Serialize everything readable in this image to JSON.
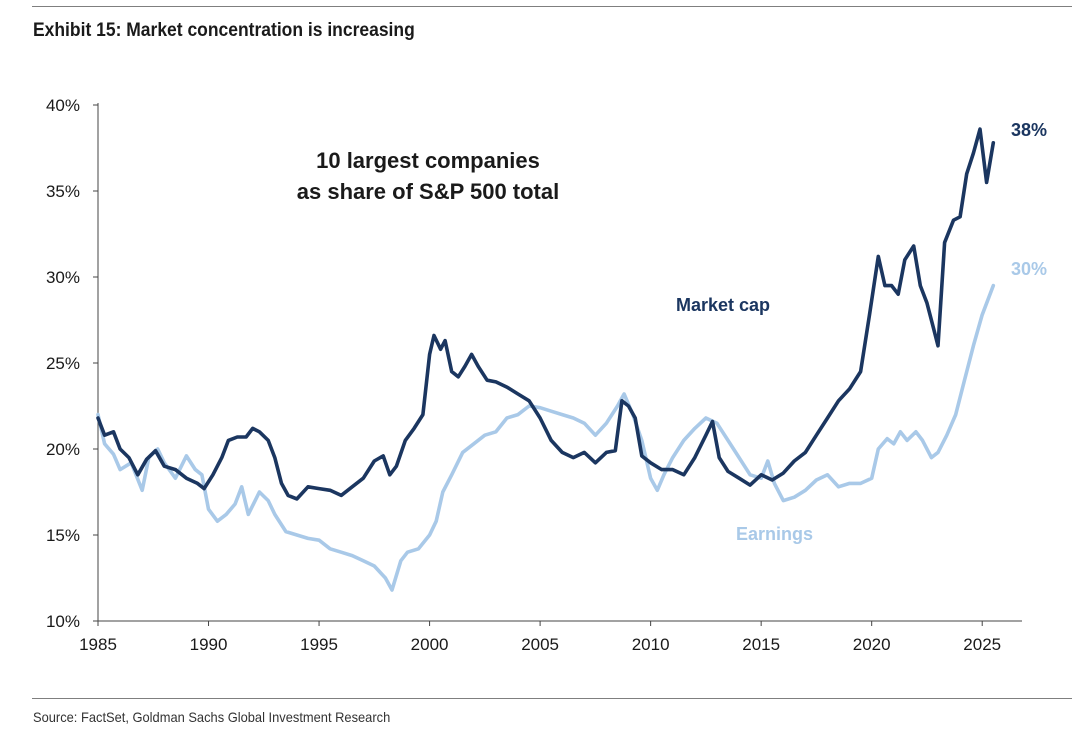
{
  "header": {
    "title": "Exhibit 15: Market concentration is increasing"
  },
  "footer": {
    "source": "Source: FactSet, Goldman Sachs Global Investment Research"
  },
  "chart_data": {
    "type": "line",
    "annotation": [
      "10 largest companies",
      "as share of S&P 500 total"
    ],
    "xlim": [
      1985,
      2026.8
    ],
    "ylim": [
      10,
      40
    ],
    "x_ticks": [
      {
        "value": 1985,
        "label": "1985"
      },
      {
        "value": 1990,
        "label": "1990"
      },
      {
        "value": 1995,
        "label": "1995"
      },
      {
        "value": 2000,
        "label": "2000"
      },
      {
        "value": 2005,
        "label": "2005"
      },
      {
        "value": 2010,
        "label": "2010"
      },
      {
        "value": 2015,
        "label": "2015"
      },
      {
        "value": 2020,
        "label": "2020"
      },
      {
        "value": 2025,
        "label": "2025"
      }
    ],
    "y_ticks": [
      {
        "value": 10,
        "label": "10%"
      },
      {
        "value": 15,
        "label": "15%"
      },
      {
        "value": 20,
        "label": "20%"
      },
      {
        "value": 25,
        "label": "25%"
      },
      {
        "value": 30,
        "label": "30%"
      },
      {
        "value": 35,
        "label": "35%"
      },
      {
        "value": 40,
        "label": "40%"
      }
    ],
    "grid": false,
    "series": [
      {
        "name": "Market cap",
        "color": "#1b3660",
        "end_label": "38%",
        "points": [
          [
            1985.0,
            21.8
          ],
          [
            1985.3,
            20.8
          ],
          [
            1985.7,
            21.0
          ],
          [
            1986.0,
            20.0
          ],
          [
            1986.4,
            19.5
          ],
          [
            1986.8,
            18.5
          ],
          [
            1987.2,
            19.4
          ],
          [
            1987.6,
            19.9
          ],
          [
            1988.0,
            19.0
          ],
          [
            1988.5,
            18.8
          ],
          [
            1989.0,
            18.3
          ],
          [
            1989.5,
            18.0
          ],
          [
            1989.8,
            17.7
          ],
          [
            1990.2,
            18.5
          ],
          [
            1990.6,
            19.5
          ],
          [
            1990.9,
            20.5
          ],
          [
            1991.3,
            20.7
          ],
          [
            1991.7,
            20.7
          ],
          [
            1992.0,
            21.2
          ],
          [
            1992.3,
            21.0
          ],
          [
            1992.7,
            20.5
          ],
          [
            1993.0,
            19.5
          ],
          [
            1993.3,
            18.0
          ],
          [
            1993.6,
            17.3
          ],
          [
            1994.0,
            17.1
          ],
          [
            1994.5,
            17.8
          ],
          [
            1995.0,
            17.7
          ],
          [
            1995.5,
            17.6
          ],
          [
            1996.0,
            17.3
          ],
          [
            1996.5,
            17.8
          ],
          [
            1997.0,
            18.3
          ],
          [
            1997.5,
            19.3
          ],
          [
            1997.9,
            19.6
          ],
          [
            1998.2,
            18.5
          ],
          [
            1998.5,
            19.0
          ],
          [
            1998.9,
            20.5
          ],
          [
            1999.3,
            21.2
          ],
          [
            1999.7,
            22.0
          ],
          [
            2000.0,
            25.5
          ],
          [
            2000.2,
            26.6
          ],
          [
            2000.5,
            25.8
          ],
          [
            2000.7,
            26.3
          ],
          [
            2001.0,
            24.5
          ],
          [
            2001.3,
            24.2
          ],
          [
            2001.6,
            24.8
          ],
          [
            2001.9,
            25.5
          ],
          [
            2002.2,
            24.8
          ],
          [
            2002.6,
            24.0
          ],
          [
            2003.0,
            23.9
          ],
          [
            2003.5,
            23.6
          ],
          [
            2004.0,
            23.2
          ],
          [
            2004.5,
            22.8
          ],
          [
            2005.0,
            21.8
          ],
          [
            2005.5,
            20.5
          ],
          [
            2006.0,
            19.8
          ],
          [
            2006.5,
            19.5
          ],
          [
            2007.0,
            19.8
          ],
          [
            2007.5,
            19.2
          ],
          [
            2008.0,
            19.8
          ],
          [
            2008.4,
            19.9
          ],
          [
            2008.7,
            22.8
          ],
          [
            2009.0,
            22.5
          ],
          [
            2009.3,
            21.8
          ],
          [
            2009.6,
            19.6
          ],
          [
            2010.0,
            19.2
          ],
          [
            2010.5,
            18.8
          ],
          [
            2011.0,
            18.8
          ],
          [
            2011.5,
            18.5
          ],
          [
            2012.0,
            19.5
          ],
          [
            2012.5,
            20.8
          ],
          [
            2012.8,
            21.6
          ],
          [
            2013.1,
            19.5
          ],
          [
            2013.5,
            18.7
          ],
          [
            2014.0,
            18.3
          ],
          [
            2014.5,
            17.9
          ],
          [
            2015.0,
            18.5
          ],
          [
            2015.5,
            18.2
          ],
          [
            2016.0,
            18.6
          ],
          [
            2016.5,
            19.3
          ],
          [
            2017.0,
            19.8
          ],
          [
            2017.5,
            20.8
          ],
          [
            2018.0,
            21.8
          ],
          [
            2018.5,
            22.8
          ],
          [
            2019.0,
            23.5
          ],
          [
            2019.5,
            24.5
          ],
          [
            2019.9,
            27.8
          ],
          [
            2020.3,
            31.2
          ],
          [
            2020.6,
            29.5
          ],
          [
            2020.9,
            29.5
          ],
          [
            2021.2,
            29.0
          ],
          [
            2021.5,
            31.0
          ],
          [
            2021.9,
            31.8
          ],
          [
            2022.2,
            29.5
          ],
          [
            2022.5,
            28.5
          ],
          [
            2022.8,
            27.0
          ],
          [
            2023.0,
            26.0
          ],
          [
            2023.3,
            32.0
          ],
          [
            2023.7,
            33.3
          ],
          [
            2024.0,
            33.5
          ],
          [
            2024.3,
            36.0
          ],
          [
            2024.6,
            37.2
          ],
          [
            2024.9,
            38.6
          ],
          [
            2025.2,
            35.5
          ],
          [
            2025.5,
            37.8
          ]
        ]
      },
      {
        "name": "Earnings",
        "color": "#a9c9e8",
        "end_label": "30%",
        "points": [
          [
            1985.0,
            22.0
          ],
          [
            1985.3,
            20.3
          ],
          [
            1985.7,
            19.7
          ],
          [
            1986.0,
            18.8
          ],
          [
            1986.5,
            19.2
          ],
          [
            1987.0,
            17.6
          ],
          [
            1987.3,
            19.5
          ],
          [
            1987.7,
            20.0
          ],
          [
            1988.0,
            19.2
          ],
          [
            1988.5,
            18.3
          ],
          [
            1989.0,
            19.6
          ],
          [
            1989.4,
            18.8
          ],
          [
            1989.7,
            18.5
          ],
          [
            1990.0,
            16.5
          ],
          [
            1990.4,
            15.8
          ],
          [
            1990.8,
            16.2
          ],
          [
            1991.2,
            16.8
          ],
          [
            1991.5,
            17.8
          ],
          [
            1991.8,
            16.2
          ],
          [
            1992.3,
            17.5
          ],
          [
            1992.7,
            17.0
          ],
          [
            1993.0,
            16.2
          ],
          [
            1993.5,
            15.2
          ],
          [
            1994.0,
            15.0
          ],
          [
            1994.5,
            14.8
          ],
          [
            1995.0,
            14.7
          ],
          [
            1995.5,
            14.2
          ],
          [
            1996.0,
            14.0
          ],
          [
            1996.5,
            13.8
          ],
          [
            1997.0,
            13.5
          ],
          [
            1997.5,
            13.2
          ],
          [
            1998.0,
            12.5
          ],
          [
            1998.3,
            11.8
          ],
          [
            1998.7,
            13.5
          ],
          [
            1999.0,
            14.0
          ],
          [
            1999.5,
            14.2
          ],
          [
            2000.0,
            15.0
          ],
          [
            2000.3,
            15.8
          ],
          [
            2000.6,
            17.5
          ],
          [
            2001.0,
            18.5
          ],
          [
            2001.5,
            19.8
          ],
          [
            2002.0,
            20.3
          ],
          [
            2002.5,
            20.8
          ],
          [
            2003.0,
            21.0
          ],
          [
            2003.5,
            21.8
          ],
          [
            2004.0,
            22.0
          ],
          [
            2004.5,
            22.5
          ],
          [
            2005.0,
            22.4
          ],
          [
            2005.5,
            22.2
          ],
          [
            2006.0,
            22.0
          ],
          [
            2006.5,
            21.8
          ],
          [
            2007.0,
            21.5
          ],
          [
            2007.5,
            20.8
          ],
          [
            2008.0,
            21.5
          ],
          [
            2008.5,
            22.5
          ],
          [
            2008.8,
            23.2
          ],
          [
            2009.2,
            22.0
          ],
          [
            2009.6,
            20.5
          ],
          [
            2010.0,
            18.3
          ],
          [
            2010.3,
            17.6
          ],
          [
            2010.6,
            18.5
          ],
          [
            2011.0,
            19.5
          ],
          [
            2011.5,
            20.5
          ],
          [
            2012.0,
            21.2
          ],
          [
            2012.5,
            21.8
          ],
          [
            2013.0,
            21.5
          ],
          [
            2013.5,
            20.5
          ],
          [
            2014.0,
            19.5
          ],
          [
            2014.5,
            18.5
          ],
          [
            2015.0,
            18.3
          ],
          [
            2015.3,
            19.3
          ],
          [
            2015.6,
            18.0
          ],
          [
            2016.0,
            17.0
          ],
          [
            2016.5,
            17.2
          ],
          [
            2017.0,
            17.6
          ],
          [
            2017.5,
            18.2
          ],
          [
            2018.0,
            18.5
          ],
          [
            2018.5,
            17.8
          ],
          [
            2019.0,
            18.0
          ],
          [
            2019.5,
            18.0
          ],
          [
            2020.0,
            18.3
          ],
          [
            2020.3,
            20.0
          ],
          [
            2020.7,
            20.6
          ],
          [
            2021.0,
            20.3
          ],
          [
            2021.3,
            21.0
          ],
          [
            2021.6,
            20.5
          ],
          [
            2022.0,
            21.0
          ],
          [
            2022.3,
            20.5
          ],
          [
            2022.7,
            19.5
          ],
          [
            2023.0,
            19.8
          ],
          [
            2023.4,
            20.8
          ],
          [
            2023.8,
            22.0
          ],
          [
            2024.2,
            24.0
          ],
          [
            2024.6,
            26.0
          ],
          [
            2025.0,
            27.8
          ],
          [
            2025.5,
            29.5
          ]
        ]
      }
    ]
  }
}
